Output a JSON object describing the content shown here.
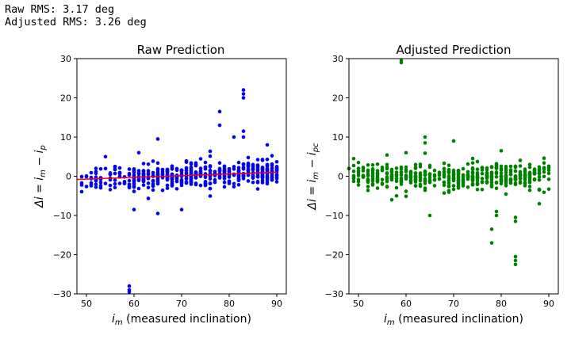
{
  "output": {
    "line1": "Raw RMS: 3.17 deg",
    "line2": "Adjusted RMS: 3.26 deg"
  },
  "chart_data": [
    {
      "type": "scatter",
      "title": "Raw Prediction",
      "xlabel": "i_m (measured inclination)",
      "ylabel": "Δi = i_m − i_p",
      "xlim": [
        48,
        92
      ],
      "ylim": [
        -30,
        30
      ],
      "xticks": [
        50,
        60,
        70,
        80,
        90
      ],
      "yticks": [
        -30,
        -20,
        -10,
        0,
        10,
        20,
        30
      ],
      "point_color": "#0000ff",
      "trend_line": {
        "color": "#ff0000",
        "x": [
          48,
          90
        ],
        "y": [
          -0.8,
          1.0
        ]
      },
      "outliers": [
        {
          "x": 59,
          "y": -28
        },
        {
          "x": 59,
          "y": -29
        },
        {
          "x": 59,
          "y": -29.5
        },
        {
          "x": 83,
          "y": 21
        },
        {
          "x": 83,
          "y": 22
        },
        {
          "x": 83,
          "y": 20
        },
        {
          "x": 78,
          "y": 16.5
        },
        {
          "x": 78,
          "y": 13
        },
        {
          "x": 81,
          "y": 10
        },
        {
          "x": 83,
          "y": 11.5
        },
        {
          "x": 83,
          "y": 10
        },
        {
          "x": 88,
          "y": 8
        },
        {
          "x": 65,
          "y": 9.5
        },
        {
          "x": 60,
          "y": -8.5
        },
        {
          "x": 65,
          "y": -9.5
        },
        {
          "x": 70,
          "y": -8.5
        },
        {
          "x": 54,
          "y": 5
        },
        {
          "x": 61,
          "y": 6
        }
      ],
      "bulk_seed": 11
    },
    {
      "type": "scatter",
      "title": "Adjusted Prediction",
      "xlabel": "i_m (measured inclination)",
      "ylabel": "Δi = i_m − i_pc",
      "xlim": [
        48,
        92
      ],
      "ylim": [
        -30,
        30
      ],
      "xticks": [
        50,
        60,
        70,
        80,
        90
      ],
      "yticks": [
        -30,
        -20,
        -10,
        0,
        10,
        20,
        30
      ],
      "point_color": "#008000",
      "outliers": [
        {
          "x": 59,
          "y": 29.5
        },
        {
          "x": 59,
          "y": 29
        },
        {
          "x": 83,
          "y": -20.5
        },
        {
          "x": 83,
          "y": -21.5
        },
        {
          "x": 83,
          "y": -22.5
        },
        {
          "x": 78,
          "y": -13.5
        },
        {
          "x": 78,
          "y": -17
        },
        {
          "x": 79,
          "y": -9
        },
        {
          "x": 79,
          "y": -10
        },
        {
          "x": 83,
          "y": -10.5
        },
        {
          "x": 83,
          "y": -11.5
        },
        {
          "x": 70,
          "y": 9
        },
        {
          "x": 64,
          "y": 10
        },
        {
          "x": 64,
          "y": 8.5
        },
        {
          "x": 60,
          "y": 6
        },
        {
          "x": 80,
          "y": 6.5
        },
        {
          "x": 65,
          "y": -10
        },
        {
          "x": 57,
          "y": -6
        },
        {
          "x": 88,
          "y": -7
        }
      ],
      "bulk_seed": 23
    }
  ]
}
